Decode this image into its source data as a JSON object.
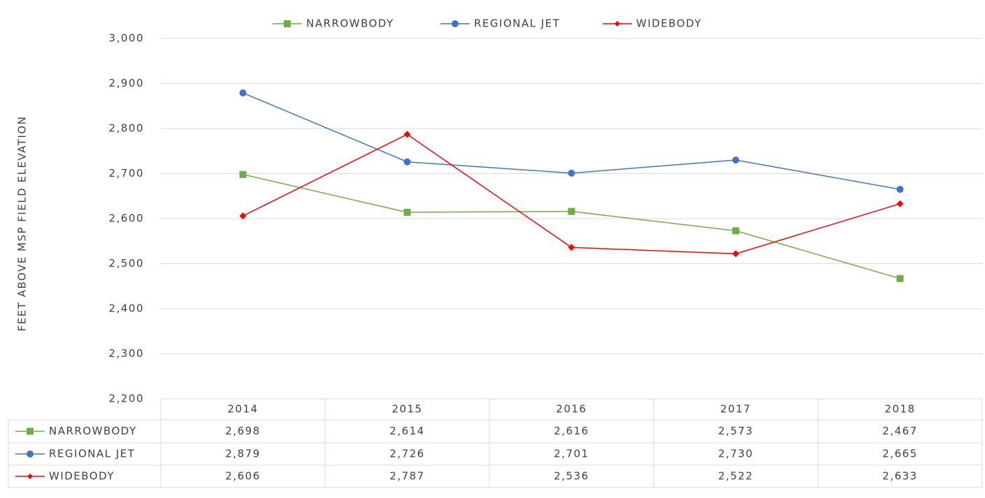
{
  "chart_data": {
    "type": "line",
    "y_label": "FEET ABOVE MSP FIELD ELEVATION",
    "categories": [
      "2014",
      "2015",
      "2016",
      "2017",
      "2018"
    ],
    "series": [
      {
        "name": "NARROWBODY",
        "color": "#70ad47",
        "marker": "square",
        "values": [
          2698,
          2614,
          2616,
          2573,
          2467
        ],
        "value_labels": [
          "2,698",
          "2,614",
          "2,616",
          "2,573",
          "2,467"
        ]
      },
      {
        "name": "REGIONAL JET",
        "color": "#4472c4",
        "marker": "circle",
        "values": [
          2879,
          2726,
          2701,
          2730,
          2665
        ],
        "value_labels": [
          "2,879",
          "2,726",
          "2,701",
          "2,730",
          "2,665"
        ]
      },
      {
        "name": "WIDEBODY",
        "color": "#ff0000",
        "marker": "diamond",
        "values": [
          2606,
          2787,
          2536,
          2522,
          2633
        ],
        "value_labels": [
          "2,606",
          "2,787",
          "2,536",
          "2,522",
          "2,633"
        ]
      }
    ],
    "ylim": [
      2200,
      3000
    ],
    "yticks": [
      {
        "value": 2200,
        "label": "2,200"
      },
      {
        "value": 2300,
        "label": "2,300"
      },
      {
        "value": 2400,
        "label": "2,400"
      },
      {
        "value": 2500,
        "label": "2,500"
      },
      {
        "value": 2600,
        "label": "2,600"
      },
      {
        "value": 2700,
        "label": "2,700"
      },
      {
        "value": 2800,
        "label": "2,800"
      },
      {
        "value": 2900,
        "label": "2,900"
      },
      {
        "value": 3000,
        "label": "3,000"
      }
    ],
    "grid": true,
    "legend": "top",
    "data_table": true
  }
}
